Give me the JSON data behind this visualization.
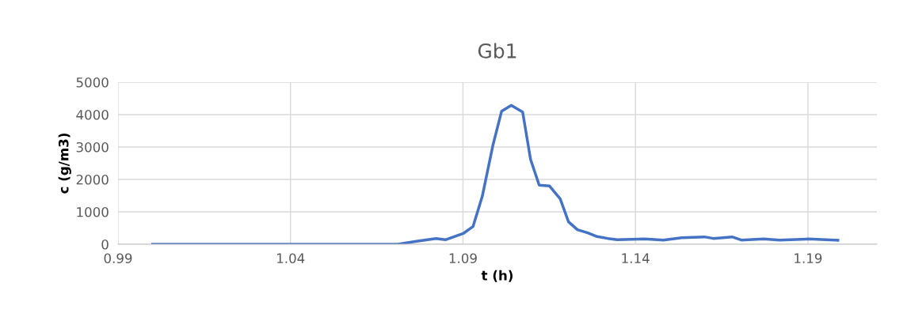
{
  "chart_data": {
    "type": "line",
    "title": "Gb1",
    "xlabel": "t (h)",
    "ylabel": "c (g/m3)",
    "x": [
      1.0,
      1.0711,
      1.0765,
      1.0822,
      1.0849,
      1.0902,
      1.0929,
      1.0956,
      1.0987,
      1.1012,
      1.104,
      1.1073,
      1.1096,
      1.1121,
      1.1151,
      1.1182,
      1.1206,
      1.1232,
      1.1262,
      1.1289,
      1.132,
      1.1347,
      1.1427,
      1.1481,
      1.1534,
      1.16,
      1.1626,
      1.168,
      1.1707,
      1.1772,
      1.1818,
      1.1902,
      1.1987
    ],
    "series": [
      {
        "color": "#4472c4",
        "values": [
          0,
          0,
          90,
          178,
          139,
          341,
          544,
          1480,
          3065,
          4105,
          4285,
          4081,
          2617,
          1822,
          1797,
          1398,
          691,
          447,
          350,
          236,
          179,
          139,
          163,
          130,
          203,
          228,
          179,
          228,
          130,
          163,
          130,
          163,
          122
        ]
      }
    ],
    "xlim": [
      0.99,
      1.21
    ],
    "xticks": [
      0.99,
      1.04,
      1.09,
      1.14,
      1.19
    ],
    "ylim": [
      0,
      5000
    ],
    "yticks": [
      0,
      1000,
      2000,
      3000,
      4000,
      5000
    ],
    "grid": true,
    "legend": false,
    "marker": "none",
    "line_style": "solid"
  }
}
